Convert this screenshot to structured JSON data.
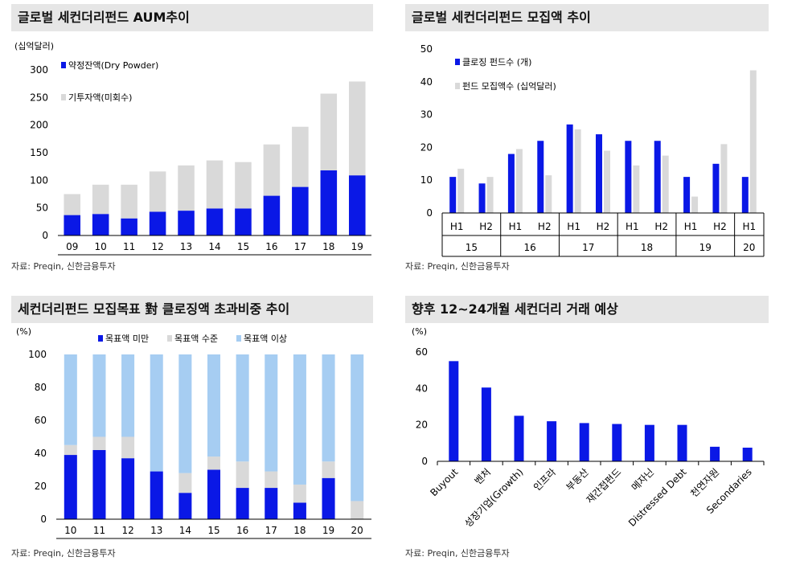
{
  "colors": {
    "blue": "#0a18e6",
    "gray": "#d9d9d9",
    "lightblue": "#a6cdf2",
    "axis": "#000000"
  },
  "source_text": "자료: Preqin, 신한금융투자",
  "chart_data": [
    {
      "id": "aum",
      "type": "bar",
      "stacked": true,
      "title": "글로벌 세컨더리펀드 AUM추이",
      "unit": "(십억달러)",
      "categories": [
        "09",
        "10",
        "11",
        "12",
        "13",
        "14",
        "15",
        "16",
        "17",
        "18",
        "19"
      ],
      "series": [
        {
          "name": "약정잔액(Dry  Powder)",
          "color": "#0a18e6",
          "values": [
            37,
            39,
            31,
            43,
            45,
            49,
            49,
            72,
            88,
            118,
            109
          ]
        },
        {
          "name": "기투자액(미회수)",
          "color": "#d9d9d9",
          "values": [
            38,
            53,
            61,
            73,
            82,
            87,
            84,
            93,
            109,
            139,
            170
          ]
        }
      ],
      "ylim": [
        0,
        300
      ],
      "yticks": [
        0,
        50,
        100,
        150,
        200,
        250,
        300
      ],
      "legend": "top-left",
      "source": "자료: Preqin, 신한금융투자"
    },
    {
      "id": "fundraising",
      "type": "bar",
      "title": "글로벌 세컨더리펀드 모집액 추이",
      "categories": [
        "H1",
        "H2",
        "H1",
        "H2",
        "H1",
        "H2",
        "H1",
        "H2",
        "H1",
        "H2",
        "H1"
      ],
      "groups": [
        {
          "label": "15",
          "span": 2
        },
        {
          "label": "16",
          "span": 2
        },
        {
          "label": "17",
          "span": 2
        },
        {
          "label": "18",
          "span": 2
        },
        {
          "label": "19",
          "span": 2
        },
        {
          "label": "20",
          "span": 1
        }
      ],
      "series": [
        {
          "name": "클로징 펀드수 (개)",
          "color": "#0a18e6",
          "values": [
            11,
            9,
            18,
            22,
            27,
            24,
            22,
            22,
            11,
            15,
            11
          ]
        },
        {
          "name": "펀드 모집액수 (십억달러)",
          "color": "#d9d9d9",
          "values": [
            13.5,
            11,
            19.5,
            11.5,
            25.5,
            19,
            14.5,
            17.5,
            5,
            21,
            43.5
          ]
        }
      ],
      "ylim": [
        0,
        50
      ],
      "yticks": [
        0,
        10,
        20,
        30,
        40,
        50
      ],
      "legend": "top-left",
      "source": "자료: Preqin, 신한금융투자"
    },
    {
      "id": "target_ratio",
      "type": "bar",
      "stacked": true,
      "title": "세컨더리펀드 모집목표 對 클로징액 초과비중 추이",
      "unit": "(%)",
      "categories": [
        "10",
        "11",
        "12",
        "13",
        "14",
        "15",
        "16",
        "17",
        "18",
        "19",
        "20"
      ],
      "series": [
        {
          "name": "목표액 미만",
          "color": "#0a18e6",
          "values": [
            39,
            42,
            37,
            29,
            16,
            30,
            19,
            19,
            10,
            25,
            0
          ]
        },
        {
          "name": "목표액 수준",
          "color": "#d9d9d9",
          "values": [
            6,
            8,
            13,
            0,
            12,
            8,
            16,
            10,
            11,
            10,
            11
          ]
        },
        {
          "name": "목표액 이상",
          "color": "#a6cdf2",
          "values": [
            55,
            50,
            50,
            71,
            72,
            62,
            65,
            71,
            79,
            65,
            89
          ]
        }
      ],
      "ylim": [
        0,
        100
      ],
      "yticks": [
        0,
        20,
        40,
        60,
        80,
        100
      ],
      "legend": "top",
      "source": "자료: Preqin, 신한금융투자"
    },
    {
      "id": "outlook",
      "type": "bar",
      "title": "향후 12~24개월 세컨더리 거래 예상",
      "unit": "(%)",
      "categories": [
        "Buyout",
        "벤처",
        "성장기업(Growth)",
        "인프라",
        "부동산",
        "재간접펀드",
        "메자닌",
        "Distressed Debt",
        "천연자원",
        "Secondaries"
      ],
      "series": [
        {
          "color": "#0a18e6",
          "values": [
            55,
            40.5,
            25,
            22,
            21,
            20.5,
            20,
            20,
            8,
            7.5
          ]
        }
      ],
      "ylim": [
        0,
        60
      ],
      "yticks": [
        0,
        20,
        40,
        60
      ],
      "source": "자료: Preqin, 신한금융투자"
    }
  ]
}
